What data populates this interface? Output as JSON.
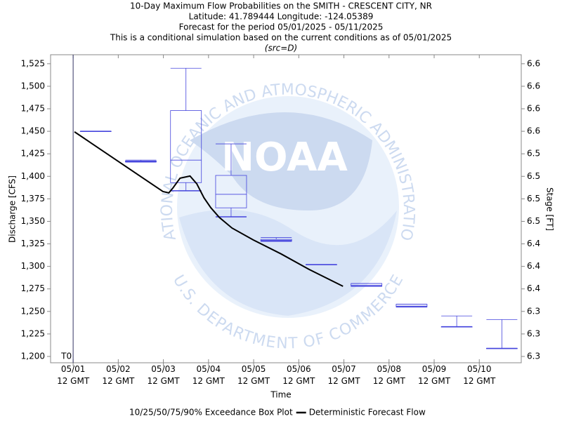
{
  "chart_data": {
    "type": "box",
    "title": [
      "10-Day Maximum Flow Probabilities on the SMITH - CRESCENT CITY, NR",
      "Latitude: 41.789444 Longitude: -124.05389",
      "Forecast for the period 05/01/2025 - 05/11/2025",
      "This is a conditional simulation based on the current conditions as of 05/01/2025"
    ],
    "subtitle": "(src=D)",
    "x_label": "Time",
    "y_label": "Discharge [CFS]",
    "y2_label": "Stage [FT]",
    "watermark": {
      "logo": "NOAA",
      "top_text": "NATIONAL OCEANIC AND ATMOSPHERIC ADMINISTRATION",
      "bottom_text": "U.S. DEPARTMENT OF COMMERCE"
    },
    "annotation": {
      "text": "T0",
      "x": 1.5
    },
    "xlim": [
      1.0,
      11.43
    ],
    "xticks": [
      {
        "value": 1.5,
        "label": "05/01 12 GMT"
      },
      {
        "value": 2.5,
        "label": "05/02 12 GMT"
      },
      {
        "value": 3.5,
        "label": "05/03 12 GMT"
      },
      {
        "value": 4.5,
        "label": "05/04 12 GMT"
      },
      {
        "value": 5.5,
        "label": "05/05 12 GMT"
      },
      {
        "value": 6.5,
        "label": "05/06 12 GMT"
      },
      {
        "value": 7.5,
        "label": "05/07 12 GMT"
      },
      {
        "value": 8.5,
        "label": "05/08 12 GMT"
      },
      {
        "value": 9.5,
        "label": "05/09 12 GMT"
      },
      {
        "value": 10.5,
        "label": "05/10 12 GMT"
      }
    ],
    "ylim": [
      1193,
      1535
    ],
    "yticks": [
      {
        "value": 1200,
        "label": "1,200"
      },
      {
        "value": 1225,
        "label": "1,225"
      },
      {
        "value": 1250,
        "label": "1,250"
      },
      {
        "value": 1275,
        "label": "1,275"
      },
      {
        "value": 1300,
        "label": "1,300"
      },
      {
        "value": 1325,
        "label": "1,325"
      },
      {
        "value": 1350,
        "label": "1,350"
      },
      {
        "value": 1375,
        "label": "1,375"
      },
      {
        "value": 1400,
        "label": "1,400"
      },
      {
        "value": 1425,
        "label": "1,425"
      },
      {
        "value": 1450,
        "label": "1,450"
      },
      {
        "value": 1475,
        "label": "1,475"
      },
      {
        "value": 1500,
        "label": "1,500"
      },
      {
        "value": 1525,
        "label": "1,525"
      }
    ],
    "y2lim": [
      6.306,
      6.648
    ],
    "y2ticks": [
      {
        "value": 6.313,
        "label": "6.3"
      },
      {
        "value": 6.338,
        "label": "6.3"
      },
      {
        "value": 6.363,
        "label": "6.3"
      },
      {
        "value": 6.388,
        "label": "6.4"
      },
      {
        "value": 6.413,
        "label": "6.4"
      },
      {
        "value": 6.438,
        "label": "6.4"
      },
      {
        "value": 6.463,
        "label": "6.5"
      },
      {
        "value": 6.488,
        "label": "6.5"
      },
      {
        "value": 6.513,
        "label": "6.5"
      },
      {
        "value": 6.538,
        "label": "6.5"
      },
      {
        "value": 6.563,
        "label": "6.6"
      },
      {
        "value": 6.588,
        "label": "6.6"
      },
      {
        "value": 6.613,
        "label": "6.6"
      },
      {
        "value": 6.638,
        "label": "6.6"
      }
    ],
    "grid": false,
    "legend": "bottom",
    "series": [
      {
        "name": "10/25/50/75/90% Exceedance Box Plot",
        "type": "box",
        "color": "#4444dd",
        "x": [
          2.0,
          3.0,
          4.0,
          5.0,
          6.0,
          7.0,
          8.0,
          9.0,
          10.0,
          11.0
        ],
        "p10": [
          1450,
          1416,
          1384,
          1355,
          1328,
          1302,
          1278,
          1255,
          1233,
          1209
        ],
        "p25": [
          1450,
          1416,
          1393,
          1365,
          1328,
          1302,
          1278,
          1255,
          1233,
          1209
        ],
        "p50": [
          1450,
          1417,
          1418,
          1380,
          1329,
          1302,
          1279,
          1256,
          1233,
          1209
        ],
        "p75": [
          1450,
          1417,
          1473,
          1401,
          1330,
          1302,
          1281,
          1258,
          1233,
          1209
        ],
        "p90": [
          1450,
          1418,
          1520,
          1436,
          1332,
          1302,
          1281,
          1258,
          1245,
          1241
        ]
      },
      {
        "name": "Deterministic Forecast Flow",
        "type": "line",
        "color": "#000000",
        "x": [
          1.53,
          3.49,
          3.62,
          3.71,
          3.87,
          4.09,
          4.24,
          4.4,
          4.55,
          4.74,
          5.02,
          5.49,
          6.11,
          6.73,
          7.48
        ],
        "values": [
          1449.4,
          1383.1,
          1381.6,
          1387.0,
          1398.0,
          1400.3,
          1391.7,
          1376.1,
          1365.2,
          1354.3,
          1342.6,
          1329.4,
          1313.8,
          1296.6,
          1277.9
        ]
      }
    ]
  }
}
